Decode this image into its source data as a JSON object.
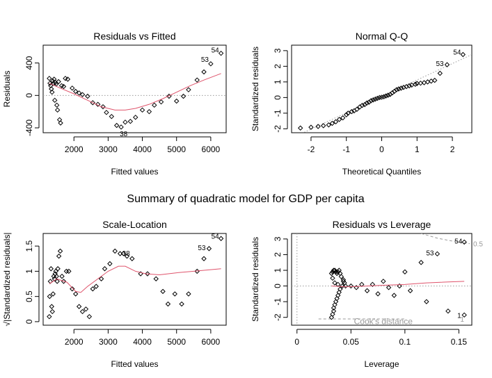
{
  "main_title": "Summary of quadratic model for GDP per capita",
  "colors": {
    "smooth": "#DF536B",
    "reference": "#999999",
    "points": "#000000",
    "axes": "#000000"
  },
  "chart_data": [
    {
      "id": "resid-fitted",
      "type": "scatter",
      "title": "Residuals vs Fitted",
      "xlabel": "Fitted values",
      "ylabel": "Residuals",
      "xlim": [
        1100,
        6450
      ],
      "ylim": [
        -460,
        620
      ],
      "xticks": [
        2000,
        3000,
        4000,
        5000,
        6000
      ],
      "yticks": [
        -400,
        0,
        400
      ],
      "hline": 0,
      "points": [
        [
          1280,
          210
        ],
        [
          1300,
          150
        ],
        [
          1320,
          120
        ],
        [
          1340,
          80
        ],
        [
          1360,
          40
        ],
        [
          1380,
          180
        ],
        [
          1400,
          150
        ],
        [
          1420,
          200
        ],
        [
          1440,
          -60
        ],
        [
          1460,
          160
        ],
        [
          1480,
          140
        ],
        [
          1500,
          -120
        ],
        [
          1520,
          -180
        ],
        [
          1550,
          170
        ],
        [
          1580,
          -300
        ],
        [
          1610,
          -340
        ],
        [
          1640,
          120
        ],
        [
          1700,
          110
        ],
        [
          1750,
          210
        ],
        [
          1820,
          200
        ],
        [
          1950,
          90
        ],
        [
          2050,
          50
        ],
        [
          2150,
          30
        ],
        [
          2250,
          10
        ],
        [
          2400,
          -10
        ],
        [
          2550,
          -90
        ],
        [
          2700,
          -110
        ],
        [
          2850,
          -140
        ],
        [
          2950,
          -210
        ],
        [
          3100,
          -260
        ],
        [
          3250,
          -370
        ],
        [
          3380,
          -390
        ],
        [
          3500,
          -330
        ],
        [
          3650,
          -320
        ],
        [
          3800,
          -270
        ],
        [
          4000,
          -180
        ],
        [
          4200,
          -200
        ],
        [
          4350,
          -120
        ],
        [
          4550,
          -80
        ],
        [
          4780,
          -10
        ],
        [
          5000,
          -70
        ],
        [
          5200,
          -10
        ],
        [
          5350,
          70
        ],
        [
          5600,
          190
        ],
        [
          5800,
          290
        ],
        [
          6000,
          390
        ],
        [
          6300,
          520
        ]
      ],
      "smooth": [
        [
          1280,
          150
        ],
        [
          1600,
          90
        ],
        [
          2000,
          20
        ],
        [
          2400,
          -60
        ],
        [
          2800,
          -140
        ],
        [
          3200,
          -180
        ],
        [
          3500,
          -180
        ],
        [
          3800,
          -160
        ],
        [
          4200,
          -110
        ],
        [
          4600,
          -40
        ],
        [
          5000,
          40
        ],
        [
          5400,
          120
        ],
        [
          5800,
          190
        ],
        [
          6300,
          270
        ]
      ],
      "labels": [
        {
          "i": 46,
          "text": "54",
          "dx": -14,
          "dy": -1
        },
        {
          "i": 45,
          "text": "53",
          "dx": -14,
          "dy": -3
        },
        {
          "i": 31,
          "text": "38",
          "dx": -2,
          "dy": 13
        }
      ]
    },
    {
      "id": "normal-qq",
      "type": "scatter",
      "title": "Normal Q-Q",
      "xlabel": "Theoretical Quantiles",
      "ylabel": "Standardized residuals",
      "xlim": [
        -2.55,
        2.55
      ],
      "ylim": [
        -2.25,
        3.35
      ],
      "xticks": [
        -2,
        -1,
        0,
        1,
        2
      ],
      "yticks": [
        -2,
        -1,
        0,
        1,
        2,
        3
      ],
      "refline": [
        [
          -2.55,
          -2.6
        ],
        [
          2.55,
          2.75
        ]
      ],
      "points": [
        [
          -2.3,
          -1.95
        ],
        [
          -2.0,
          -1.9
        ],
        [
          -1.8,
          -1.85
        ],
        [
          -1.65,
          -1.8
        ],
        [
          -1.5,
          -1.75
        ],
        [
          -1.4,
          -1.65
        ],
        [
          -1.3,
          -1.55
        ],
        [
          -1.2,
          -1.4
        ],
        [
          -1.1,
          -1.3
        ],
        [
          -1.0,
          -1.1
        ],
        [
          -0.95,
          -1.0
        ],
        [
          -0.85,
          -0.9
        ],
        [
          -0.78,
          -0.85
        ],
        [
          -0.7,
          -0.75
        ],
        [
          -0.62,
          -0.6
        ],
        [
          -0.55,
          -0.5
        ],
        [
          -0.48,
          -0.45
        ],
        [
          -0.42,
          -0.35
        ],
        [
          -0.36,
          -0.3
        ],
        [
          -0.3,
          -0.2
        ],
        [
          -0.24,
          -0.15
        ],
        [
          -0.18,
          -0.1
        ],
        [
          -0.12,
          -0.05
        ],
        [
          -0.06,
          0.0
        ],
        [
          0.0,
          0.02
        ],
        [
          0.06,
          0.05
        ],
        [
          0.12,
          0.1
        ],
        [
          0.18,
          0.15
        ],
        [
          0.24,
          0.2
        ],
        [
          0.3,
          0.3
        ],
        [
          0.36,
          0.4
        ],
        [
          0.42,
          0.5
        ],
        [
          0.48,
          0.55
        ],
        [
          0.55,
          0.6
        ],
        [
          0.62,
          0.65
        ],
        [
          0.7,
          0.7
        ],
        [
          0.78,
          0.75
        ],
        [
          0.85,
          0.8
        ],
        [
          0.95,
          0.85
        ],
        [
          1.0,
          0.9
        ],
        [
          1.1,
          0.92
        ],
        [
          1.2,
          0.95
        ],
        [
          1.3,
          1.0
        ],
        [
          1.4,
          1.05
        ],
        [
          1.5,
          1.1
        ],
        [
          1.65,
          1.55
        ],
        [
          1.85,
          2.1
        ],
        [
          2.3,
          2.75
        ]
      ],
      "labels": [
        {
          "i": 47,
          "text": "54",
          "dx": -14,
          "dy": 0
        },
        {
          "i": 46,
          "text": "53",
          "dx": -16,
          "dy": 2
        }
      ]
    },
    {
      "id": "scale-location",
      "type": "scatter",
      "title": "Scale-Location",
      "xlabel": "Fitted values",
      "ylabel": "√|Standardized residuals|",
      "xlim": [
        1100,
        6450
      ],
      "ylim": [
        -0.07,
        1.75
      ],
      "xticks": [
        2000,
        3000,
        4000,
        5000,
        6000
      ],
      "yticks": [
        0.0,
        0.5,
        1.0,
        1.5
      ],
      "points": [
        [
          1280,
          0.1
        ],
        [
          1290,
          0.5
        ],
        [
          1310,
          0.8
        ],
        [
          1330,
          1.05
        ],
        [
          1350,
          0.3
        ],
        [
          1370,
          0.2
        ],
        [
          1390,
          0.55
        ],
        [
          1410,
          0.9
        ],
        [
          1430,
          0.85
        ],
        [
          1450,
          0.95
        ],
        [
          1470,
          1.0
        ],
        [
          1490,
          0.9
        ],
        [
          1510,
          0.8
        ],
        [
          1530,
          1.05
        ],
        [
          1560,
          1.3
        ],
        [
          1600,
          1.4
        ],
        [
          1650,
          0.9
        ],
        [
          1700,
          0.8
        ],
        [
          1780,
          1.0
        ],
        [
          1850,
          1.0
        ],
        [
          1950,
          0.65
        ],
        [
          2050,
          0.55
        ],
        [
          2150,
          0.3
        ],
        [
          2250,
          0.2
        ],
        [
          2350,
          0.25
        ],
        [
          2450,
          0.1
        ],
        [
          2550,
          0.65
        ],
        [
          2650,
          0.7
        ],
        [
          2800,
          0.85
        ],
        [
          2900,
          1.05
        ],
        [
          3050,
          1.15
        ],
        [
          3200,
          1.4
        ],
        [
          3350,
          1.35
        ],
        [
          3450,
          1.35
        ],
        [
          3550,
          1.3
        ],
        [
          3700,
          1.25
        ],
        [
          3950,
          0.95
        ],
        [
          4150,
          0.95
        ],
        [
          4400,
          0.85
        ],
        [
          4600,
          0.6
        ],
        [
          4750,
          0.35
        ],
        [
          4950,
          0.55
        ],
        [
          5150,
          0.35
        ],
        [
          5350,
          0.55
        ],
        [
          5600,
          1.0
        ],
        [
          5800,
          1.25
        ],
        [
          5950,
          1.45
        ],
        [
          6300,
          1.65
        ]
      ],
      "smooth": [
        [
          1280,
          0.75
        ],
        [
          1500,
          0.85
        ],
        [
          1800,
          0.78
        ],
        [
          2050,
          0.6
        ],
        [
          2200,
          0.58
        ],
        [
          2400,
          0.7
        ],
        [
          2700,
          0.85
        ],
        [
          3000,
          1.0
        ],
        [
          3300,
          1.1
        ],
        [
          3500,
          1.1
        ],
        [
          3800,
          1.0
        ],
        [
          4100,
          0.95
        ],
        [
          4500,
          0.93
        ],
        [
          5000,
          0.97
        ],
        [
          5500,
          1.0
        ],
        [
          6300,
          1.05
        ]
      ],
      "labels": [
        {
          "i": 47,
          "text": "54",
          "dx": -14,
          "dy": 0
        },
        {
          "i": 46,
          "text": "53",
          "dx": -16,
          "dy": 2
        },
        {
          "i": 33,
          "text": "38",
          "dx": -2,
          "dy": 3
        }
      ]
    },
    {
      "id": "resid-leverage",
      "type": "scatter",
      "title": "Residuals vs Leverage",
      "xlabel": "Leverage",
      "ylabel": "Standardized residuals",
      "xlim": [
        -0.005,
        0.162
      ],
      "ylim": [
        -2.5,
        3.35
      ],
      "xticks": [
        0.0,
        0.05,
        0.1,
        0.15
      ],
      "yticks": [
        -2,
        -1,
        0,
        1,
        2,
        3
      ],
      "hline": 0,
      "vline": 0,
      "cook_text": "Cook's distance",
      "cook_levels": [
        "0.5",
        "1"
      ],
      "cook_upper": [
        [
          0.115,
          3.35
        ],
        [
          0.13,
          3.05
        ],
        [
          0.145,
          2.85
        ],
        [
          0.16,
          2.7
        ]
      ],
      "cook_lower": [
        [
          0.02,
          -2.1
        ],
        [
          0.1,
          -2.1
        ]
      ],
      "points": [
        [
          0.032,
          -2.0
        ],
        [
          0.033,
          -1.8
        ],
        [
          0.034,
          -1.6
        ],
        [
          0.034,
          -1.4
        ],
        [
          0.035,
          -1.2
        ],
        [
          0.036,
          -1.0
        ],
        [
          0.037,
          -0.8
        ],
        [
          0.038,
          -0.6
        ],
        [
          0.039,
          -0.4
        ],
        [
          0.04,
          -0.2
        ],
        [
          0.042,
          0.0
        ],
        [
          0.044,
          0.2
        ],
        [
          0.043,
          0.4
        ],
        [
          0.041,
          0.6
        ],
        [
          0.04,
          0.8
        ],
        [
          0.039,
          1.0
        ],
        [
          0.038,
          0.9
        ],
        [
          0.037,
          0.8
        ],
        [
          0.036,
          0.9
        ],
        [
          0.035,
          1.0
        ],
        [
          0.034,
          1.0
        ],
        [
          0.033,
          0.9
        ],
        [
          0.032,
          0.8
        ],
        [
          0.033,
          0.5
        ],
        [
          0.035,
          0.2
        ],
        [
          0.038,
          0.1
        ],
        [
          0.043,
          0.3
        ],
        [
          0.045,
          0.0
        ],
        [
          0.05,
          0.0
        ],
        [
          0.055,
          -0.1
        ],
        [
          0.06,
          0.1
        ],
        [
          0.065,
          -0.3
        ],
        [
          0.07,
          0.1
        ],
        [
          0.075,
          -0.5
        ],
        [
          0.08,
          0.3
        ],
        [
          0.085,
          -0.1
        ],
        [
          0.09,
          -0.6
        ],
        [
          0.095,
          0.0
        ],
        [
          0.1,
          0.9
        ],
        [
          0.105,
          -0.3
        ],
        [
          0.115,
          1.5
        ],
        [
          0.12,
          -1.0
        ],
        [
          0.13,
          2.05
        ],
        [
          0.14,
          -1.6
        ],
        [
          0.155,
          -1.85
        ],
        [
          0.155,
          2.8
        ]
      ],
      "smooth": [
        [
          0.032,
          0.0
        ],
        [
          0.045,
          -0.05
        ],
        [
          0.06,
          -0.02
        ],
        [
          0.08,
          0.05
        ],
        [
          0.1,
          0.1
        ],
        [
          0.12,
          0.2
        ],
        [
          0.155,
          0.3
        ]
      ],
      "labels": [
        {
          "i": 45,
          "text": "54",
          "dx": -14,
          "dy": 2
        },
        {
          "i": 42,
          "text": "53",
          "dx": -16,
          "dy": 2
        },
        {
          "i": 44,
          "text": "1",
          "dx": -10,
          "dy": 4
        }
      ]
    }
  ]
}
